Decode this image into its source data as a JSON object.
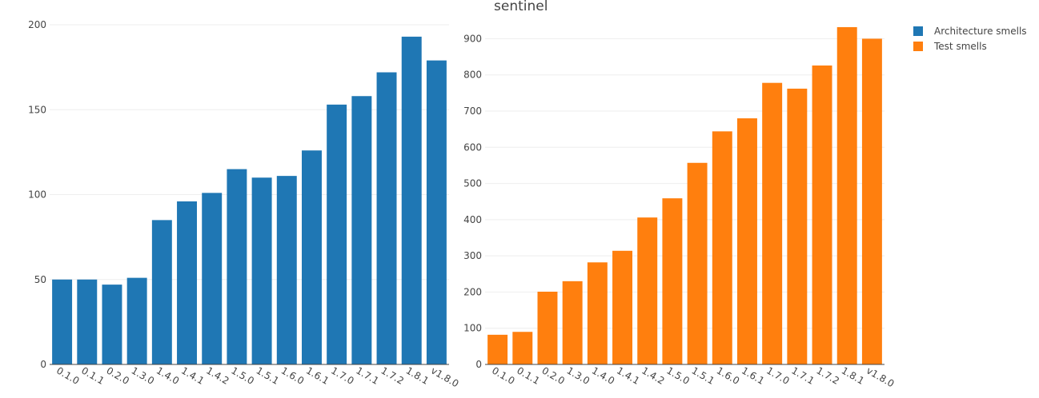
{
  "chart_data": {
    "type": "bar",
    "title": "sentinel",
    "legend": {
      "placement": "top-right",
      "entries": [
        "Architecture smells",
        "Test smells"
      ]
    },
    "categories": [
      "0.1.0",
      "0.1.1",
      "0.2.0",
      "1.3.0",
      "1.4.0",
      "1.4.1",
      "1.4.2",
      "1.5.0",
      "1.5.1",
      "1.6.0",
      "1.6.1",
      "1.7.0",
      "1.7.1",
      "1.7.2",
      "1.8.1",
      "v1.8.0"
    ],
    "panels": [
      {
        "series": {
          "name": "Architecture smells",
          "color": "#1f77b4",
          "values": [
            50,
            50,
            47,
            51,
            85,
            96,
            101,
            115,
            110,
            111,
            126,
            153,
            158,
            172,
            193,
            179
          ]
        },
        "ylim": [
          0,
          200
        ],
        "yticks": [
          0,
          50,
          100,
          150,
          200
        ],
        "grid": true
      },
      {
        "series": {
          "name": "Test smells",
          "color": "#ff7f0e",
          "values": [
            82,
            90,
            201,
            230,
            282,
            314,
            406,
            459,
            557,
            644,
            680,
            778,
            762,
            826,
            932,
            900
          ]
        },
        "ylim": [
          0,
          965
        ],
        "yticks": [
          0,
          100,
          200,
          300,
          400,
          500,
          600,
          700,
          800,
          900
        ],
        "grid": true
      }
    ]
  }
}
